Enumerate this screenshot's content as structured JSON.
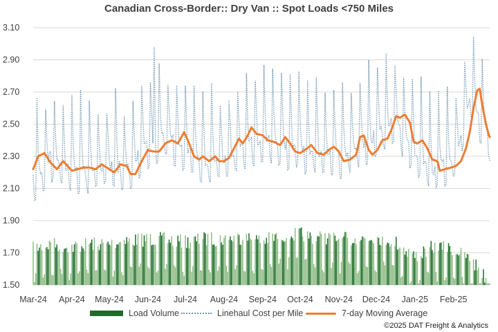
{
  "chart_data": {
    "type": "line",
    "title": "Canadian Cross-Border:: Dry Van :: Spot Loads <750 Miles",
    "xlabel": "",
    "ylabel": "",
    "ylim": [
      1.5,
      3.1
    ],
    "y_ticks": [
      "3.10",
      "2.90",
      "2.70",
      "2.50",
      "2.30",
      "2.10",
      "1.90",
      "1.70",
      "1.50"
    ],
    "x_ticks": [
      "Mar-24",
      "Apr-24",
      "May-24",
      "Jun-24",
      "Jul-24",
      "Aug-24",
      "Sep-24",
      "Oct-24",
      "Nov-24",
      "Dec-24",
      "Jan-25",
      "Feb-25"
    ],
    "grid": true,
    "legend_position": "bottom",
    "x_range": [
      "2024-03-01",
      "2025-03-02"
    ],
    "series": [
      {
        "name": "Load Volume",
        "kind": "bar",
        "color": "#1e6b2c",
        "points": [
          [
            "2024-03-01",
            1.77
          ],
          [
            "2024-03-15",
            1.8
          ],
          [
            "2024-04-01",
            1.78
          ],
          [
            "2024-04-15",
            1.8
          ],
          [
            "2024-05-01",
            1.8
          ],
          [
            "2024-05-15",
            1.82
          ],
          [
            "2024-06-01",
            1.83
          ],
          [
            "2024-06-15",
            1.83
          ],
          [
            "2024-07-01",
            1.81
          ],
          [
            "2024-07-15",
            1.83
          ],
          [
            "2024-08-01",
            1.83
          ],
          [
            "2024-08-15",
            1.84
          ],
          [
            "2024-09-01",
            1.82
          ],
          [
            "2024-09-15",
            1.85
          ],
          [
            "2024-10-01",
            1.86
          ],
          [
            "2024-10-15",
            1.84
          ],
          [
            "2024-11-01",
            1.83
          ],
          [
            "2024-11-15",
            1.83
          ],
          [
            "2024-12-01",
            1.84
          ],
          [
            "2024-12-15",
            1.82
          ],
          [
            "2025-01-01",
            1.72
          ],
          [
            "2025-01-15",
            1.78
          ],
          [
            "2025-02-01",
            1.77
          ],
          [
            "2025-02-15",
            1.7
          ],
          [
            "2025-03-01",
            1.57
          ]
        ]
      },
      {
        "name": "Linehaul Cost per Mile",
        "kind": "line-dotted",
        "color": "#6a93ae",
        "points": [
          [
            "2024-03-01",
            2.18
          ],
          [
            "2024-03-15",
            2.32
          ],
          [
            "2024-04-01",
            2.25
          ],
          [
            "2024-04-15",
            2.23
          ],
          [
            "2024-05-01",
            2.27
          ],
          [
            "2024-05-15",
            2.24
          ],
          [
            "2024-06-01",
            2.4
          ],
          [
            "2024-06-15",
            2.45
          ],
          [
            "2024-07-01",
            2.37
          ],
          [
            "2024-07-15",
            2.29
          ],
          [
            "2024-08-01",
            2.31
          ],
          [
            "2024-08-15",
            2.38
          ],
          [
            "2024-09-01",
            2.44
          ],
          [
            "2024-09-15",
            2.41
          ],
          [
            "2024-10-01",
            2.37
          ],
          [
            "2024-10-15",
            2.35
          ],
          [
            "2024-11-01",
            2.33
          ],
          [
            "2024-11-15",
            2.39
          ],
          [
            "2024-12-01",
            2.45
          ],
          [
            "2024-12-15",
            2.55
          ],
          [
            "2025-01-01",
            2.36
          ],
          [
            "2025-01-15",
            2.24
          ],
          [
            "2025-02-01",
            2.3
          ],
          [
            "2025-02-15",
            2.68
          ],
          [
            "2025-03-01",
            2.45
          ]
        ],
        "peak": [
          "2024-06-06",
          2.98
        ]
      },
      {
        "name": "7-day Moving Average",
        "kind": "line",
        "color": "#ed7d31",
        "points": [
          [
            "2024-03-01",
            2.22
          ],
          [
            "2024-03-05",
            2.3
          ],
          [
            "2024-03-10",
            2.32
          ],
          [
            "2024-03-15",
            2.26
          ],
          [
            "2024-03-20",
            2.22
          ],
          [
            "2024-03-25",
            2.27
          ],
          [
            "2024-04-01",
            2.21
          ],
          [
            "2024-04-10",
            2.23
          ],
          [
            "2024-04-15",
            2.23
          ],
          [
            "2024-04-20",
            2.22
          ],
          [
            "2024-04-25",
            2.25
          ],
          [
            "2024-05-01",
            2.22
          ],
          [
            "2024-05-05",
            2.2
          ],
          [
            "2024-05-10",
            2.25
          ],
          [
            "2024-05-15",
            2.24
          ],
          [
            "2024-05-18",
            2.19
          ],
          [
            "2024-05-22",
            2.19
          ],
          [
            "2024-05-27",
            2.27
          ],
          [
            "2024-06-01",
            2.34
          ],
          [
            "2024-06-05",
            2.33
          ],
          [
            "2024-06-10",
            2.33
          ],
          [
            "2024-06-15",
            2.38
          ],
          [
            "2024-06-20",
            2.4
          ],
          [
            "2024-06-25",
            2.38
          ],
          [
            "2024-06-30",
            2.45
          ],
          [
            "2024-07-03",
            2.4
          ],
          [
            "2024-07-08",
            2.3
          ],
          [
            "2024-07-12",
            2.28
          ],
          [
            "2024-07-15",
            2.3
          ],
          [
            "2024-07-20",
            2.27
          ],
          [
            "2024-07-25",
            2.3
          ],
          [
            "2024-07-28",
            2.27
          ],
          [
            "2024-08-01",
            2.27
          ],
          [
            "2024-08-05",
            2.29
          ],
          [
            "2024-08-09",
            2.35
          ],
          [
            "2024-08-13",
            2.41
          ],
          [
            "2024-08-16",
            2.38
          ],
          [
            "2024-08-20",
            2.43
          ],
          [
            "2024-08-23",
            2.48
          ],
          [
            "2024-08-27",
            2.44
          ],
          [
            "2024-09-01",
            2.43
          ],
          [
            "2024-09-05",
            2.4
          ],
          [
            "2024-09-10",
            2.39
          ],
          [
            "2024-09-15",
            2.37
          ],
          [
            "2024-09-19",
            2.42
          ],
          [
            "2024-09-23",
            2.38
          ],
          [
            "2024-09-27",
            2.33
          ],
          [
            "2024-10-01",
            2.32
          ],
          [
            "2024-10-05",
            2.34
          ],
          [
            "2024-10-10",
            2.37
          ],
          [
            "2024-10-15",
            2.32
          ],
          [
            "2024-10-20",
            2.31
          ],
          [
            "2024-10-24",
            2.34
          ],
          [
            "2024-10-28",
            2.36
          ],
          [
            "2024-11-01",
            2.33
          ],
          [
            "2024-11-05",
            2.27
          ],
          [
            "2024-11-10",
            2.28
          ],
          [
            "2024-11-15",
            2.31
          ],
          [
            "2024-11-18",
            2.42
          ],
          [
            "2024-11-21",
            2.43
          ],
          [
            "2024-11-25",
            2.34
          ],
          [
            "2024-11-28",
            2.31
          ],
          [
            "2024-12-02",
            2.34
          ],
          [
            "2024-12-06",
            2.4
          ],
          [
            "2024-12-10",
            2.41
          ],
          [
            "2024-12-13",
            2.46
          ],
          [
            "2024-12-17",
            2.55
          ],
          [
            "2024-12-20",
            2.54
          ],
          [
            "2024-12-24",
            2.56
          ],
          [
            "2024-12-28",
            2.51
          ],
          [
            "2024-12-31",
            2.39
          ],
          [
            "2025-01-03",
            2.38
          ],
          [
            "2025-01-07",
            2.4
          ],
          [
            "2025-01-11",
            2.35
          ],
          [
            "2025-01-15",
            2.28
          ],
          [
            "2025-01-19",
            2.27
          ],
          [
            "2025-01-21",
            2.21
          ],
          [
            "2025-01-25",
            2.22
          ],
          [
            "2025-01-30",
            2.23
          ],
          [
            "2025-02-03",
            2.24
          ],
          [
            "2025-02-07",
            2.27
          ],
          [
            "2025-02-11",
            2.35
          ],
          [
            "2025-02-14",
            2.45
          ],
          [
            "2025-02-17",
            2.6
          ],
          [
            "2025-02-20",
            2.71
          ],
          [
            "2025-02-22",
            2.72
          ],
          [
            "2025-02-24",
            2.62
          ],
          [
            "2025-02-27",
            2.5
          ],
          [
            "2025-03-01",
            2.44
          ],
          [
            "2025-03-02",
            2.42
          ]
        ]
      }
    ],
    "copyright": "©2025 DAT Freight & Analytics"
  }
}
